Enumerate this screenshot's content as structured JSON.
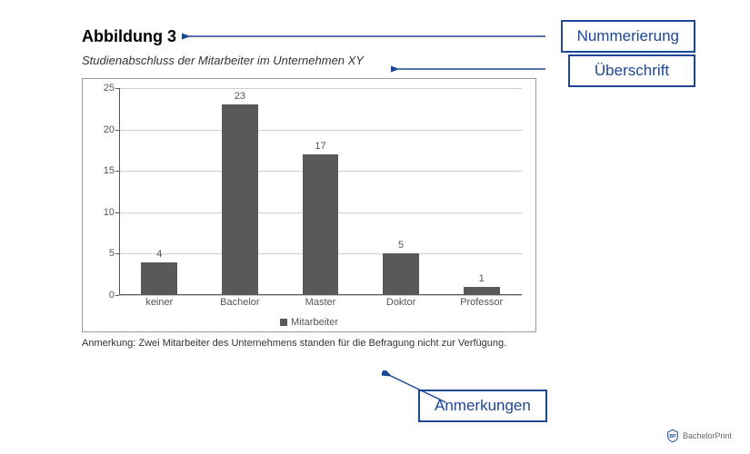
{
  "title": "Abbildung 3",
  "subtitle": "Studienabschluss der Mitarbeiter im Unternehmen XY",
  "chart": {
    "type": "bar",
    "categories": [
      "keiner",
      "Bachelor",
      "Master",
      "Doktor",
      "Professor"
    ],
    "values": [
      4,
      23,
      17,
      5,
      1
    ],
    "bar_color": "#595959",
    "ylim": [
      0,
      25
    ],
    "ytick_step": 5,
    "yticks": [
      0,
      5,
      10,
      15,
      20,
      25
    ],
    "grid_color": "#d0d0d0",
    "axis_color": "#555555",
    "background": "#ffffff",
    "border_color": "#999999",
    "label_fontsize": 11,
    "tick_fontsize": 11,
    "bar_width_ratio": 0.45
  },
  "legend": {
    "label": "Mitarbeiter",
    "swatch_color": "#595959"
  },
  "note": "Anmerkung: Zwei Mitarbeiter des Unternehmens standen für die Befragung nicht zur Verfügung.",
  "annotations": {
    "numbering": "Nummerierung",
    "heading": "Überschrift",
    "remarks": "Anmerkungen",
    "box_border": "#1b4796",
    "box_text": "#1b4796",
    "arrow_color": "#1b4796"
  },
  "logo": {
    "text": "BachelorPrint"
  }
}
